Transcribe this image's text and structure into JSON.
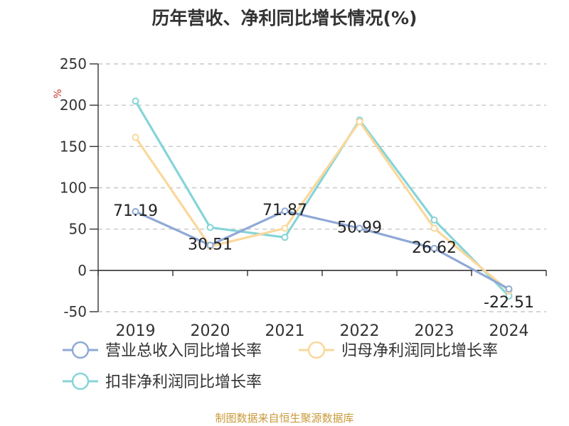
{
  "chart_data": {
    "type": "line",
    "title": "历年营收、净利同比增长情况(%)",
    "ylabel": "%",
    "xlabel": "",
    "ylim": [
      -50,
      250
    ],
    "yticks": [
      250,
      200,
      150,
      100,
      50,
      0,
      -50
    ],
    "categories": [
      "2019",
      "2020",
      "2021",
      "2022",
      "2023",
      "2024"
    ],
    "grid": true,
    "legend_position": "bottom",
    "series": [
      {
        "name": "营业总收入同比增长率",
        "color": "#8fa9d6",
        "values": [
          71.19,
          30.51,
          71.87,
          50.99,
          26.62,
          -22.51
        ],
        "labels": [
          "71.19",
          "30.51",
          "71.87",
          "50.99",
          "26.62",
          "-22.51"
        ]
      },
      {
        "name": "归母净利润同比增长率",
        "color": "#fad89b",
        "values": [
          161,
          29,
          51,
          180,
          51,
          -25
        ]
      },
      {
        "name": "扣非净利润同比增长率",
        "color": "#86d4d8",
        "values": [
          205,
          52,
          40,
          182,
          61,
          -31
        ]
      }
    ]
  },
  "footer": {
    "source": "制图数据来自恒生聚源数据库"
  }
}
